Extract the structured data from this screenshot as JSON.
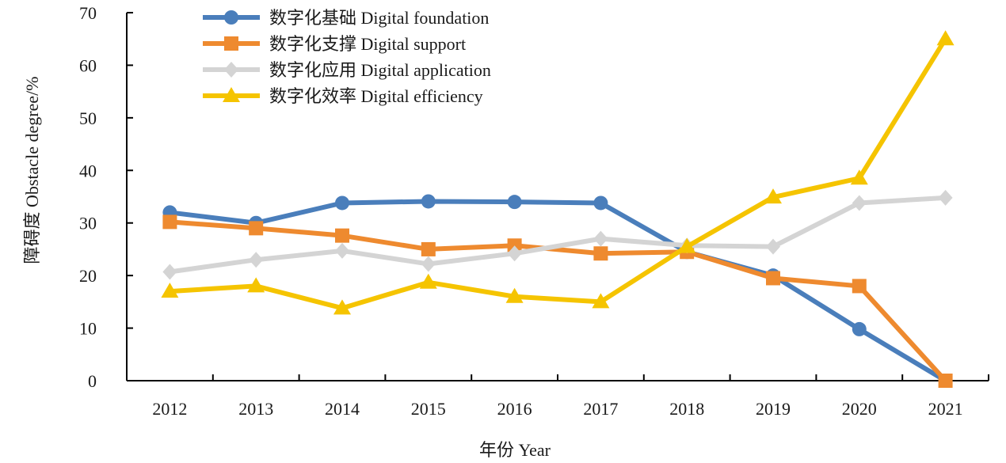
{
  "chart_data": {
    "type": "line",
    "title": "",
    "xlabel": "年份 Year",
    "ylabel": "障碍度 Obstacle degree/%",
    "categories": [
      "2012",
      "2013",
      "2014",
      "2015",
      "2016",
      "2017",
      "2018",
      "2019",
      "2020",
      "2021"
    ],
    "yticks": [
      "0",
      "10",
      "20",
      "30",
      "40",
      "50",
      "60",
      "70"
    ],
    "ylim": [
      0,
      70
    ],
    "grid": false,
    "legend_position": "top-left",
    "series": [
      {
        "name": "数字化基础 Digital foundation",
        "color": "#4a7ebb",
        "marker": "circle",
        "values": [
          32.0,
          30.0,
          33.8,
          34.1,
          34.0,
          33.8,
          24.5,
          20.0,
          9.8,
          0.0
        ]
      },
      {
        "name": "数字化支撑 Digital support",
        "color": "#ee8a2f",
        "marker": "square",
        "values": [
          30.2,
          29.0,
          27.6,
          25.0,
          25.7,
          24.2,
          24.5,
          19.5,
          18.0,
          0.0
        ]
      },
      {
        "name": "数字化应用 Digital application",
        "color": "#d4d4d4",
        "marker": "diamond",
        "values": [
          20.7,
          23.0,
          24.7,
          22.2,
          24.2,
          27.0,
          25.7,
          25.5,
          33.8,
          34.8
        ]
      },
      {
        "name": "数字化效率 Digital efficiency",
        "color": "#f5c400",
        "marker": "triangle",
        "values": [
          17.0,
          18.0,
          13.8,
          18.7,
          16.0,
          15.0,
          25.5,
          34.9,
          38.5,
          65.0
        ]
      }
    ]
  }
}
